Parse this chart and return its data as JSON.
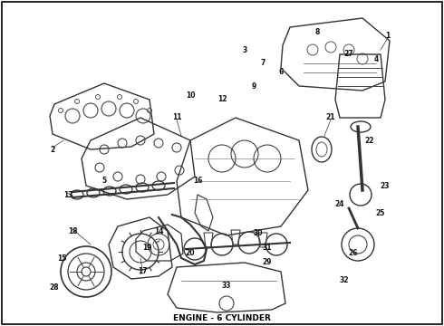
{
  "title": "ENGINE - 6 CYLINDER",
  "background_color": "#ffffff",
  "border_color": "#000000",
  "fig_width": 4.9,
  "fig_height": 3.6,
  "dpi": 100,
  "caption": "ENGINE - 6 CYLINDER",
  "caption_fontsize": 6.5,
  "caption_fontweight": "bold",
  "border_linewidth": 1.2
}
